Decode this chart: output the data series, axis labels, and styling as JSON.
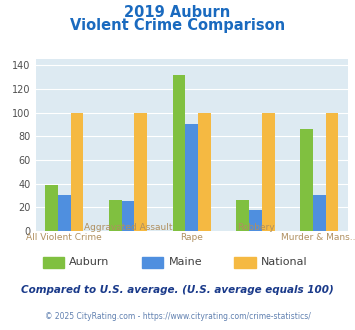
{
  "title_line1": "2019 Auburn",
  "title_line2": "Violent Crime Comparison",
  "categories_top": [
    "",
    "Aggravated Assault",
    "",
    "Robbery",
    ""
  ],
  "categories_bot": [
    "All Violent Crime",
    "",
    "Rape",
    "",
    "Murder & Mans..."
  ],
  "series": {
    "Auburn": [
      39,
      26,
      132,
      26,
      86
    ],
    "Maine": [
      30,
      25,
      90,
      18,
      30
    ],
    "National": [
      100,
      100,
      100,
      100,
      100
    ]
  },
  "colors": {
    "Auburn": "#80c040",
    "Maine": "#4f8fdf",
    "National": "#f5b942"
  },
  "ylim": [
    0,
    145
  ],
  "yticks": [
    0,
    20,
    40,
    60,
    80,
    100,
    120,
    140
  ],
  "background_color": "#ddeaf2",
  "title_color": "#1a6abf",
  "xlabel_color": "#b09060",
  "legend_text_color": "#404040",
  "footer_text": "Compared to U.S. average. (U.S. average equals 100)",
  "credit_text": "© 2025 CityRating.com - https://www.cityrating.com/crime-statistics/",
  "footer_color": "#1a3a8a",
  "credit_color": "#6080b0"
}
